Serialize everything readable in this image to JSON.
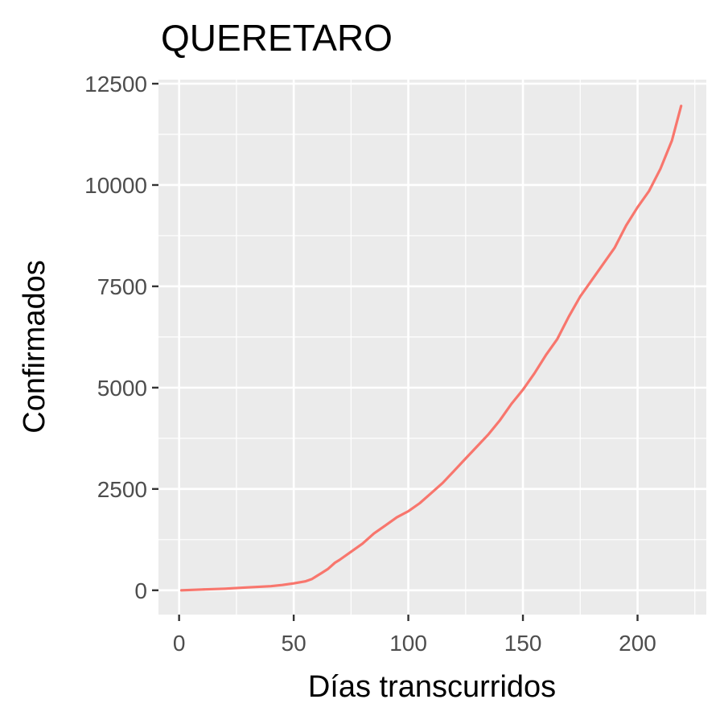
{
  "chart_data": {
    "type": "line",
    "title": "QUERETARO",
    "xlabel": "Días transcurridos",
    "ylabel": "Confirmados",
    "xlim": [
      -9,
      230
    ],
    "ylim": [
      -600,
      12600
    ],
    "x_ticks": [
      0,
      50,
      100,
      150,
      200
    ],
    "x_tick_labels": [
      "0",
      "50",
      "100",
      "150",
      "200"
    ],
    "y_ticks": [
      0,
      2500,
      5000,
      7500,
      10000,
      12500
    ],
    "y_tick_labels": [
      "0",
      "2500",
      "5000",
      "7500",
      "10000",
      "12500"
    ],
    "grid": true,
    "legend": "none",
    "colors": {
      "panel": "#ebebeb",
      "grid": "#ffffff",
      "line": "#f8766d"
    },
    "series": [
      {
        "x": [
          1,
          10,
          20,
          30,
          40,
          45,
          50,
          55,
          58,
          60,
          62,
          65,
          68,
          70,
          75,
          80,
          85,
          90,
          95,
          100,
          105,
          110,
          115,
          120,
          125,
          130,
          135,
          140,
          145,
          150,
          155,
          160,
          165,
          170,
          175,
          180,
          185,
          190,
          195,
          200,
          205,
          210,
          215,
          219
        ],
        "values": [
          0,
          20,
          40,
          70,
          100,
          130,
          170,
          220,
          280,
          350,
          420,
          530,
          680,
          750,
          950,
          1150,
          1400,
          1600,
          1800,
          1950,
          2150,
          2400,
          2650,
          2950,
          3250,
          3550,
          3850,
          4200,
          4600,
          4950,
          5350,
          5800,
          6200,
          6750,
          7250,
          7650,
          8050,
          8450,
          9000,
          9450,
          9850,
          10400,
          11100,
          11950
        ]
      }
    ]
  }
}
